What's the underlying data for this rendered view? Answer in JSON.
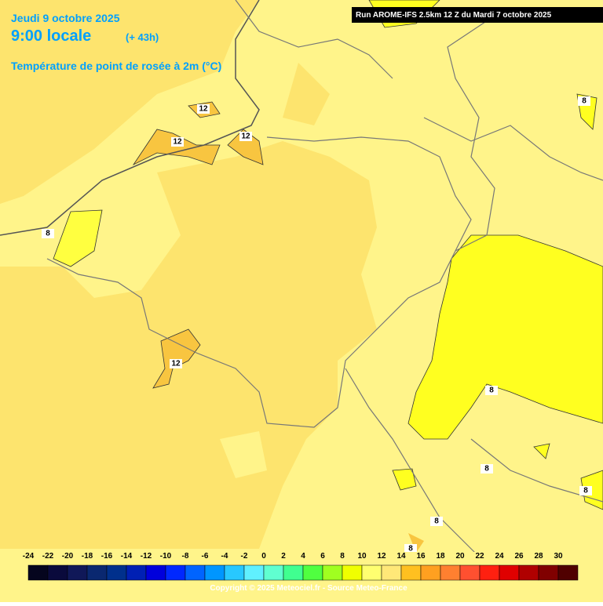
{
  "header": {
    "date": "Jeudi 9 octobre 2025",
    "time": "9:00 locale",
    "lead": "(+ 43h)",
    "title": "Température de point de rosée à 2m (°C)",
    "run": "Run AROME-IFS 2.5km 12 Z du Mardi 7 octobre 2025"
  },
  "contour_labels": [
    "12",
    "12",
    "12",
    "12",
    "8",
    "8",
    "8",
    "8",
    "8",
    "8",
    "8"
  ],
  "legend": {
    "ticks": [
      "-24",
      "-22",
      "-20",
      "-18",
      "-16",
      "-14",
      "-12",
      "-10",
      "-8",
      "-6",
      "-4",
      "-2",
      "0",
      "2",
      "4",
      "6",
      "8",
      "10",
      "12",
      "14",
      "16",
      "18",
      "20",
      "22",
      "24",
      "26",
      "28",
      "30"
    ],
    "colors": [
      "#05051e",
      "#0a0a3c",
      "#101858",
      "#0a2870",
      "#00308c",
      "#0020b4",
      "#0000dc",
      "#0028ff",
      "#0064ff",
      "#0096ff",
      "#28c8ff",
      "#60f0ff",
      "#60ffd0",
      "#40ff90",
      "#50ff40",
      "#a0ff20",
      "#f0ff00",
      "#ffff70",
      "#ffe878",
      "#ffc020",
      "#ffa020",
      "#ff8030",
      "#ff5030",
      "#ff2010",
      "#e00000",
      "#b00000",
      "#800000",
      "#500000"
    ]
  },
  "copyright": "Copyright © 2025 Meteociel.fr - Source Meteo-France"
}
